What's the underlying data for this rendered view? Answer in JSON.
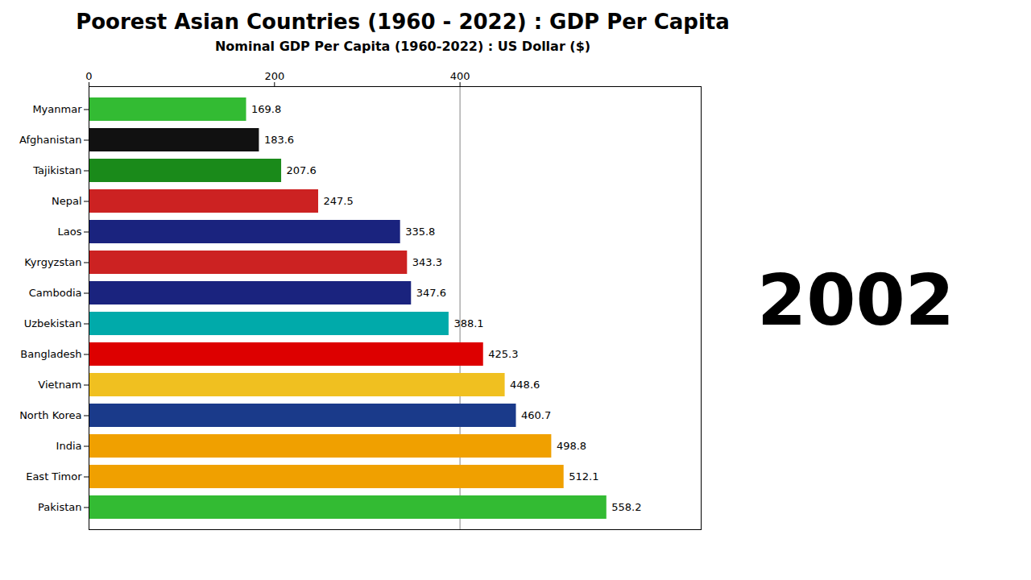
{
  "chart_data": {
    "type": "bar",
    "orientation": "horizontal",
    "title": "Poorest Asian Countries (1960 - 2022) : GDP Per Capita",
    "subtitle": "Nominal GDP Per Capita (1960-2022) : US Dollar ($)",
    "annotations": [
      "2002"
    ],
    "categories": [
      "Myanmar",
      "Afghanistan",
      "Tajikistan",
      "Nepal",
      "Laos",
      "Kyrgyzstan",
      "Cambodia",
      "Uzbekistan",
      "Bangladesh",
      "Vietnam",
      "North Korea",
      "India",
      "East Timor",
      "Pakistan"
    ],
    "values": [
      169.8,
      183.6,
      207.6,
      247.5,
      335.8,
      343.3,
      347.6,
      388.1,
      425.3,
      448.6,
      460.7,
      498.8,
      512.1,
      558.2
    ],
    "colors": [
      "#33bb33",
      "#111111",
      "#1a8a1a",
      "#cc2222",
      "#1a237e",
      "#cc2222",
      "#1a237e",
      "#00aaaa",
      "#dd0000",
      "#f0c020",
      "#1a3a8a",
      "#f0a000",
      "#f0a000",
      "#33bb33"
    ],
    "xlim": [
      0,
      660
    ],
    "xticks": [
      0,
      200,
      400
    ],
    "reference_line_x": 400,
    "data_labels": true,
    "grid": false
  }
}
